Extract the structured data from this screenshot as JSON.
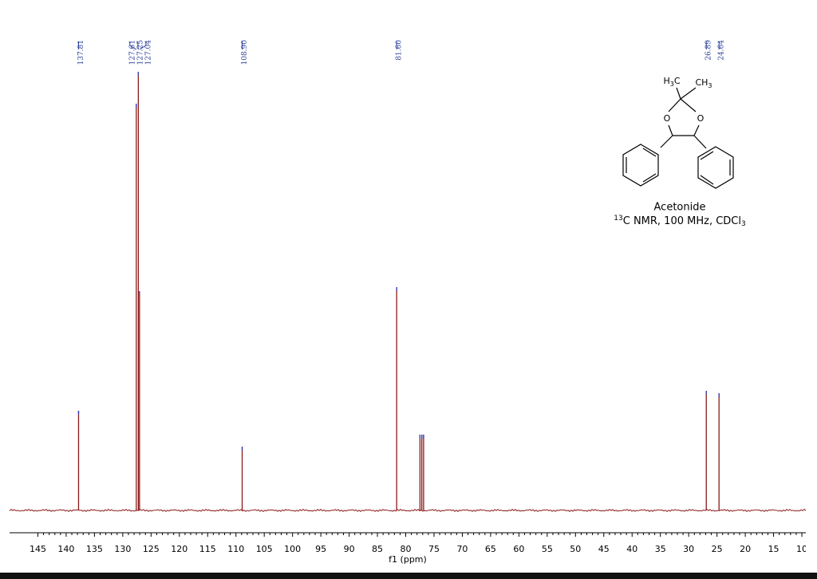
{
  "chart_data": {
    "type": "spectrum",
    "x_label": "f1 (ppm)",
    "xlim": [
      150,
      9.3
    ],
    "xticks": [
      145,
      140,
      135,
      130,
      125,
      120,
      115,
      110,
      105,
      100,
      95,
      90,
      85,
      80,
      75,
      70,
      65,
      60,
      55,
      50,
      45,
      40,
      35,
      30,
      25,
      20,
      15,
      10
    ],
    "ylim": [
      0,
      560
    ],
    "color": "#8b1a1a",
    "peak_tip_color": "#3a3fb0",
    "label_color": "#2a3f9a",
    "peaks": {
      "x": [
        137.81,
        127.61,
        127.25,
        127.04,
        108.9,
        81.6,
        77.48,
        77.16,
        76.84,
        26.89,
        24.64
      ],
      "x_labels": [
        "137.81",
        "127.61",
        "127.25",
        "127.04",
        "108.90",
        "81.60",
        null,
        null,
        null,
        "26.89",
        "24.64"
      ],
      "values": [
        125,
        510,
        550,
        275,
        80,
        280,
        95,
        95,
        95,
        150,
        147
      ]
    },
    "structure": {
      "methyl_left": [
        "H",
        "3",
        "C"
      ],
      "methyl_right": [
        "CH",
        "3"
      ],
      "oxygen_left": "O",
      "oxygen_right": "O"
    },
    "caption": {
      "compound": "Acetonide",
      "isotope": "13",
      "method": "C NMR, 100 MHz, CDCl",
      "method_sub": "3"
    }
  }
}
